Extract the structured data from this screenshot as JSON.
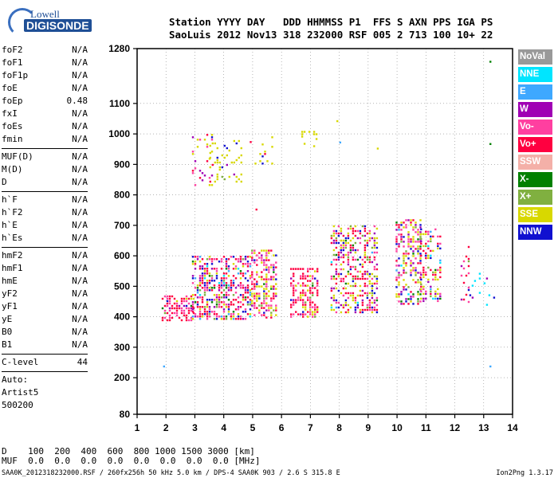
{
  "logo": {
    "line1": "Lowell",
    "line2": "DIGISONDE"
  },
  "header": {
    "line1": "Station YYYY DAY   DDD HHMMSS P1  FFS S AXN PPS IGA PS",
    "line2": "SaoLuis 2012 Nov13 318 232000 RSF 005 2 713 100 10+ 22"
  },
  "params_group1": [
    {
      "name": "foF2",
      "value": "N/A"
    },
    {
      "name": "foF1",
      "value": "N/A"
    },
    {
      "name": "foF1p",
      "value": "N/A"
    },
    {
      "name": "foE",
      "value": "N/A"
    },
    {
      "name": "foEp",
      "value": "0.48"
    },
    {
      "name": "fxI",
      "value": "N/A"
    },
    {
      "name": "foEs",
      "value": "N/A"
    },
    {
      "name": "fmin",
      "value": "N/A"
    }
  ],
  "params_group2": [
    {
      "name": "MUF(D)",
      "value": "N/A"
    },
    {
      "name": "M(D)",
      "value": "N/A"
    },
    {
      "name": "D",
      "value": "N/A"
    }
  ],
  "params_group3": [
    {
      "name": "h`F",
      "value": "N/A"
    },
    {
      "name": "h`F2",
      "value": "N/A"
    },
    {
      "name": "h`E",
      "value": "N/A"
    },
    {
      "name": "h`Es",
      "value": "N/A"
    }
  ],
  "params_group4": [
    {
      "name": "hmF2",
      "value": "N/A"
    },
    {
      "name": "hmF1",
      "value": "N/A"
    },
    {
      "name": "hmE",
      "value": "N/A"
    },
    {
      "name": "yF2",
      "value": "N/A"
    },
    {
      "name": "yF1",
      "value": "N/A"
    },
    {
      "name": "yE",
      "value": "N/A"
    },
    {
      "name": "B0",
      "value": "N/A"
    },
    {
      "name": "B1",
      "value": "N/A"
    }
  ],
  "params_group5": [
    {
      "name": "C-level",
      "value": "44"
    }
  ],
  "autoscale": [
    "Auto:",
    "Artist5",
    "500200"
  ],
  "legend": [
    {
      "label": "NoVal",
      "color": "#999999"
    },
    {
      "label": "NNE",
      "color": "#00e5ff"
    },
    {
      "label": "E",
      "color": "#3ea8ff"
    },
    {
      "label": "W",
      "color": "#a000b4"
    },
    {
      "label": "Vo-",
      "color": "#ff3fa0"
    },
    {
      "label": "Vo+",
      "color": "#ff0040"
    },
    {
      "label": "SSW",
      "color": "#f4b0a8"
    },
    {
      "label": "X-",
      "color": "#008000"
    },
    {
      "label": "X+",
      "color": "#80b040"
    },
    {
      "label": "SSE",
      "color": "#d8d800"
    },
    {
      "label": "NNW",
      "color": "#1010d0"
    }
  ],
  "bottom": {
    "line1": "D    100  200  400  600  800 1000 1500 3000 [km]",
    "line2": "MUF  0.0  0.0  0.0  0.0  0.0  0.0  0.0  0.0 [MHz]"
  },
  "footer": {
    "left": "SAA0K_2012318232000.RSF / 260fx256h 50 kHz 5.0 km / DPS-4 SAA0K 903 / 2.6 S 315.8 E",
    "right": "Ion2Png 1.3.17"
  },
  "chart_data": {
    "type": "scatter",
    "title": "",
    "xlabel": "",
    "ylabel": "",
    "xlim": [
      1,
      14
    ],
    "ylim": [
      80,
      1280
    ],
    "xticks": [
      1,
      2,
      3,
      4,
      5,
      6,
      7,
      8,
      9,
      10,
      11,
      12,
      13,
      14
    ],
    "yticks": [
      80,
      200,
      300,
      400,
      500,
      600,
      700,
      800,
      900,
      1000,
      1100,
      1280
    ],
    "grid": "dotted",
    "clusters": [
      {
        "x": [
          1.85,
          2.95
        ],
        "y": [
          390,
          470
        ],
        "density": 0.55,
        "weights": [
          0,
          0,
          0,
          5,
          40,
          45,
          0,
          3,
          2,
          5,
          3
        ]
      },
      {
        "x": [
          2.9,
          4.9
        ],
        "y": [
          390,
          600
        ],
        "density": 0.5,
        "weights": [
          0,
          2,
          3,
          12,
          20,
          28,
          0,
          4,
          6,
          12,
          13
        ]
      },
      {
        "x": [
          4.95,
          5.85
        ],
        "y": [
          400,
          620
        ],
        "density": 0.45,
        "weights": [
          0,
          0,
          0,
          5,
          25,
          30,
          0,
          2,
          5,
          28,
          5
        ]
      },
      {
        "x": [
          6.3,
          7.25
        ],
        "y": [
          400,
          560
        ],
        "density": 0.5,
        "weights": [
          0,
          0,
          0,
          5,
          28,
          40,
          0,
          2,
          3,
          18,
          4
        ]
      },
      {
        "x": [
          7.7,
          9.3
        ],
        "y": [
          410,
          700
        ],
        "density": 0.45,
        "weights": [
          0,
          1,
          2,
          10,
          22,
          25,
          0,
          3,
          6,
          22,
          9
        ]
      },
      {
        "x": [
          9.95,
          10.8
        ],
        "y": [
          440,
          720
        ],
        "density": 0.45,
        "weights": [
          0,
          2,
          2,
          12,
          18,
          18,
          0,
          4,
          8,
          28,
          8
        ]
      },
      {
        "x": [
          10.8,
          11.5
        ],
        "y": [
          450,
          690
        ],
        "density": 0.3,
        "weights": [
          0,
          3,
          2,
          10,
          14,
          18,
          0,
          3,
          8,
          25,
          7
        ]
      },
      {
        "x": [
          12.2,
          12.5
        ],
        "y": [
          450,
          640
        ],
        "density": 0.15,
        "weights": [
          0,
          0,
          0,
          20,
          30,
          40,
          0,
          0,
          5,
          0,
          5
        ]
      },
      {
        "x": [
          12.5,
          13.4
        ],
        "y": [
          440,
          560
        ],
        "density": 0.06,
        "weights": [
          0,
          60,
          10,
          10,
          0,
          10,
          0,
          0,
          0,
          0,
          10
        ]
      },
      {
        "x": [
          2.9,
          3.6
        ],
        "y": [
          820,
          1000
        ],
        "density": 0.12,
        "weights": [
          0,
          0,
          0,
          25,
          20,
          20,
          0,
          0,
          5,
          20,
          10
        ]
      },
      {
        "x": [
          3.5,
          4.6
        ],
        "y": [
          840,
          980
        ],
        "density": 0.15,
        "weights": [
          0,
          0,
          0,
          5,
          5,
          5,
          0,
          0,
          10,
          70,
          5
        ]
      },
      {
        "x": [
          4.9,
          5.8
        ],
        "y": [
          900,
          1000
        ],
        "density": 0.08,
        "weights": [
          0,
          0,
          0,
          10,
          5,
          10,
          0,
          0,
          10,
          60,
          5
        ]
      },
      {
        "x": [
          6.6,
          7.2
        ],
        "y": [
          960,
          1010
        ],
        "density": 0.15,
        "weights": [
          0,
          0,
          0,
          0,
          0,
          0,
          0,
          0,
          10,
          90,
          0
        ]
      }
    ]
  }
}
